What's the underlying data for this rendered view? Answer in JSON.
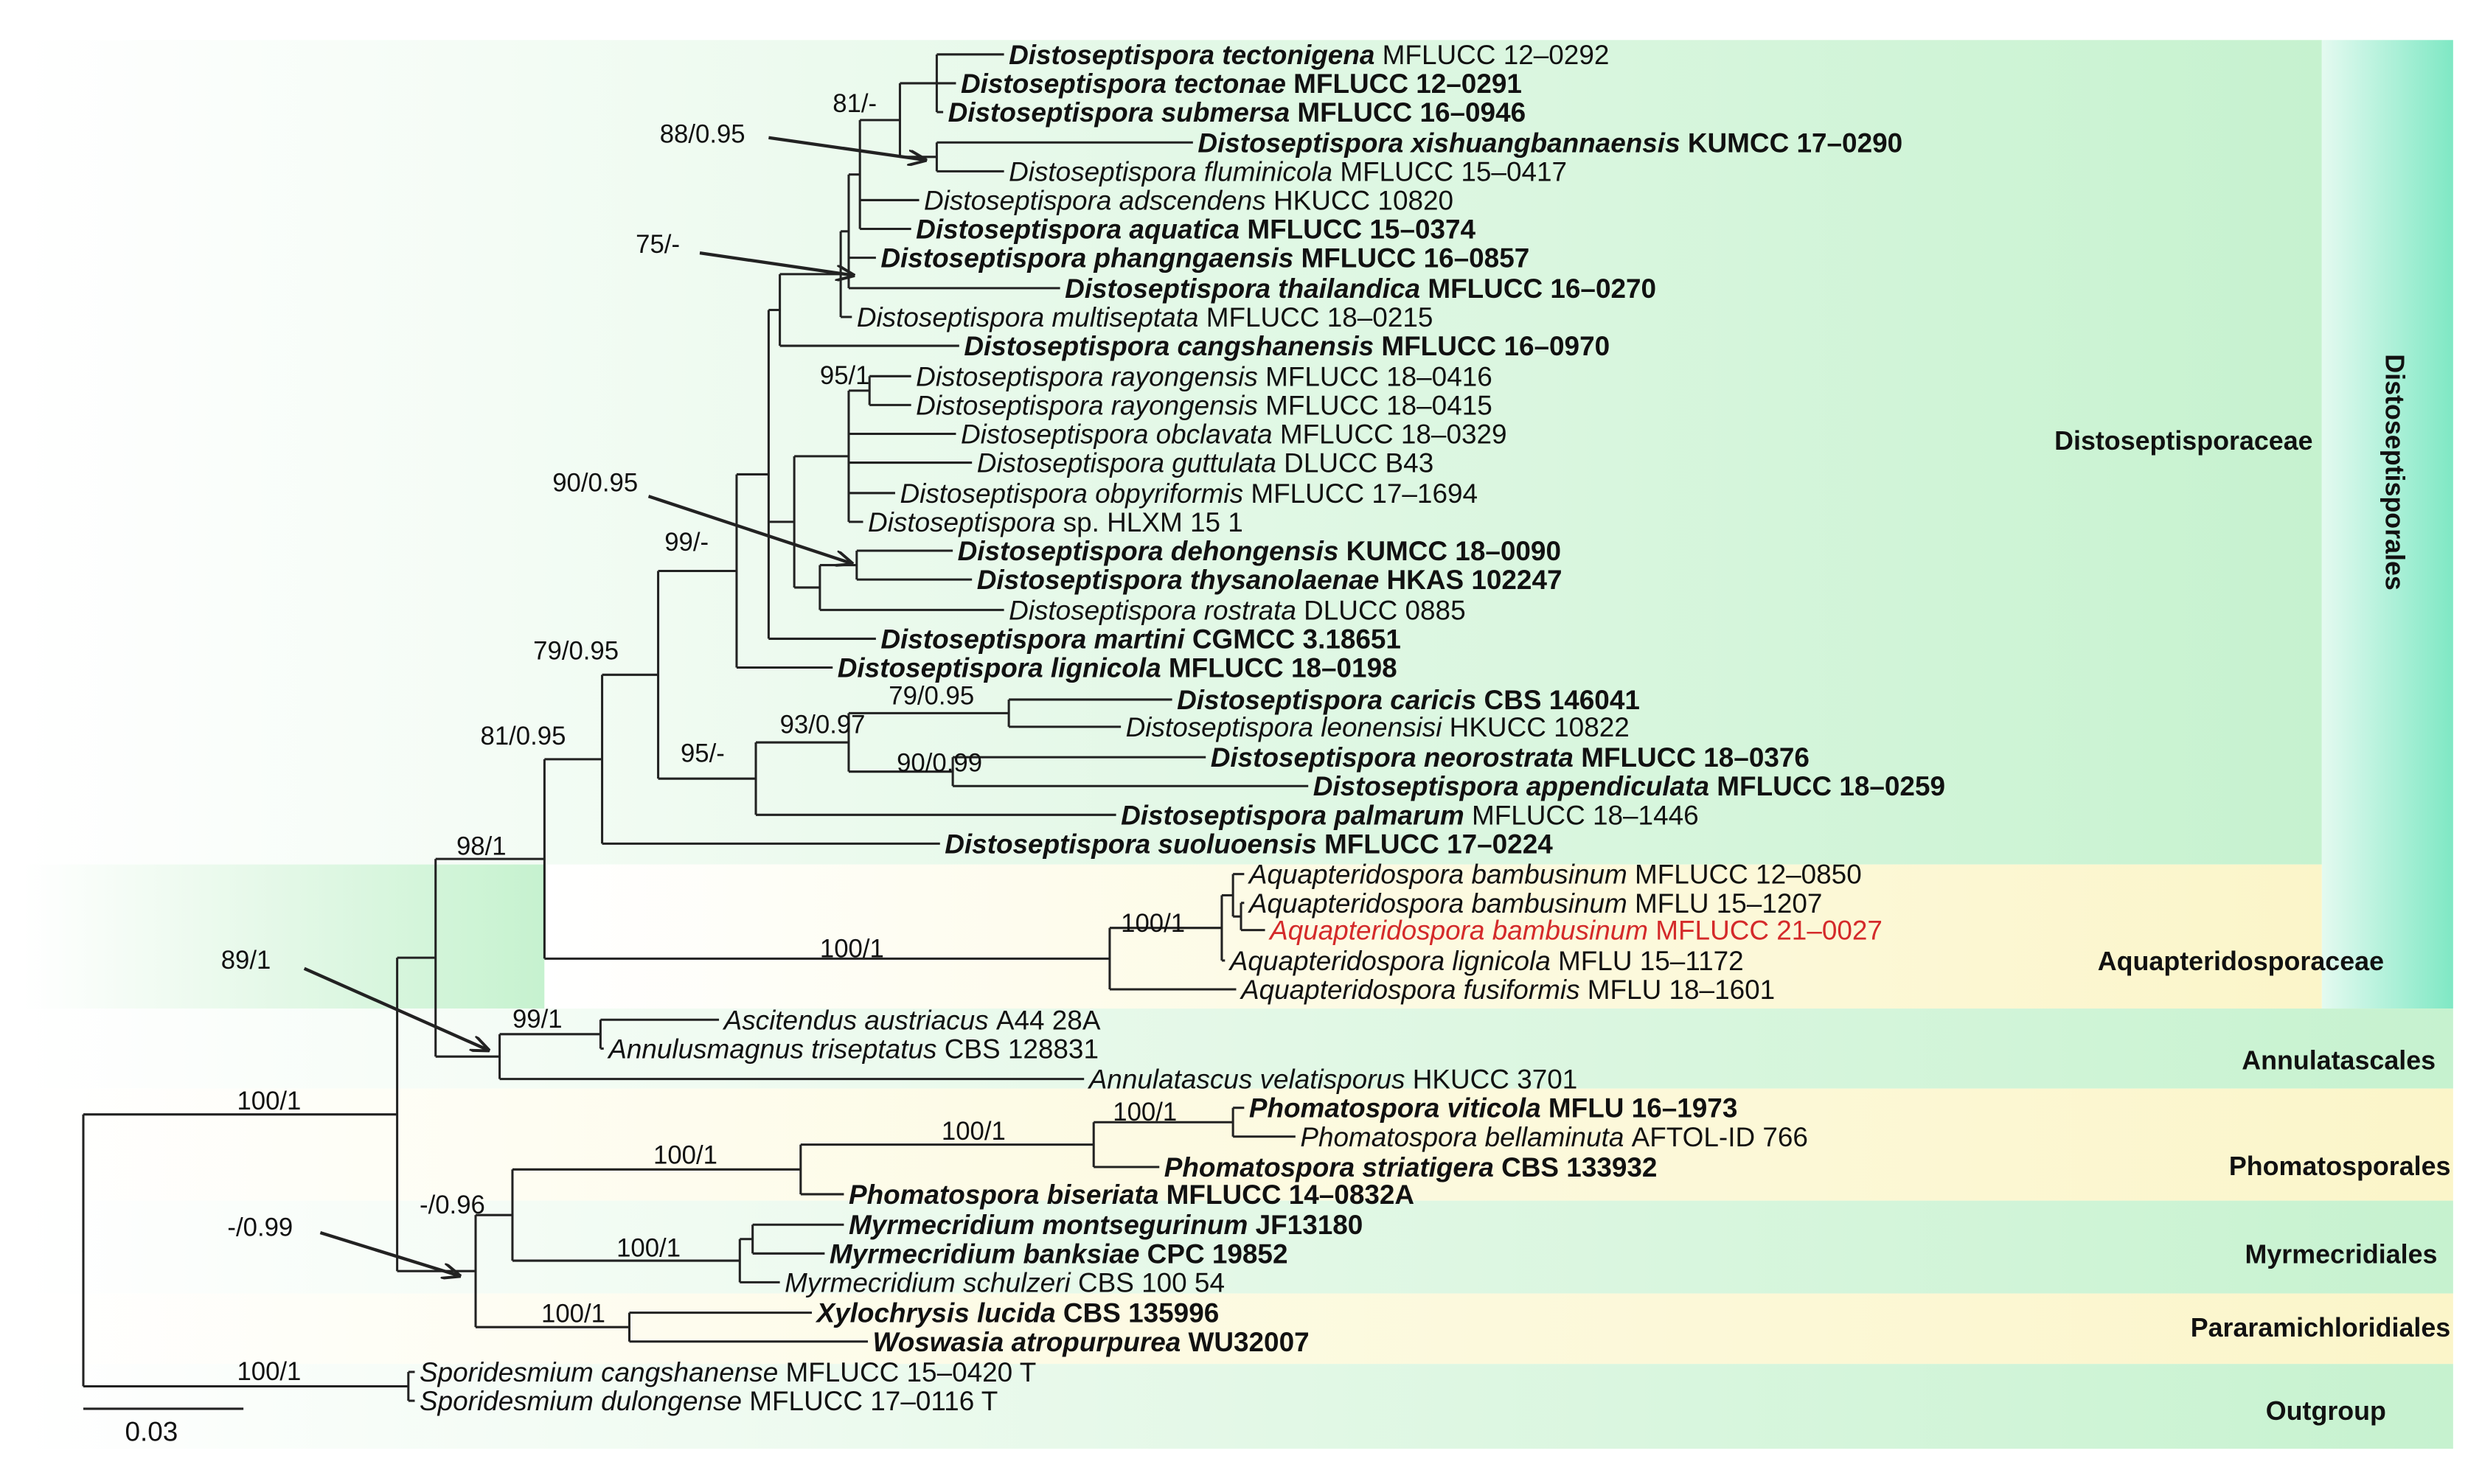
{
  "taxa": [
    {
      "name": "Distoseptispora tectonigena",
      "strain": "MFLUCC 12–0292",
      "bold": "name"
    },
    {
      "name": "Distoseptispora tectonae",
      "strain": "MFLUCC 12–0291",
      "bold": "both"
    },
    {
      "name": "Distoseptispora submersa",
      "strain": "MFLUCC 16–0946",
      "bold": "both"
    },
    {
      "name": "Distoseptispora xishuangbannaensis",
      "strain": "KUMCC 17–0290",
      "bold": "both"
    },
    {
      "name": "Distoseptispora fluminicola",
      "strain": "MFLUCC 15–0417"
    },
    {
      "name": "Distoseptispora adscendens",
      "strain": "HKUCC 10820"
    },
    {
      "name": "Distoseptispora aquatica",
      "strain": "MFLUCC 15–0374",
      "bold": "both"
    },
    {
      "name": "Distoseptispora phangngaensis",
      "strain": "MFLUCC 16–0857",
      "bold": "both"
    },
    {
      "name": "Distoseptispora thailandica",
      "strain": "MFLUCC 16–0270",
      "bold": "both"
    },
    {
      "name": "Distoseptispora multiseptata",
      "strain": "MFLUCC 18–0215"
    },
    {
      "name": "Distoseptispora cangshanensis",
      "strain": "MFLUCC 16–0970",
      "bold": "both"
    },
    {
      "name": "Distoseptispora rayongensis",
      "strain": "MFLUCC 18–0416"
    },
    {
      "name": "Distoseptispora rayongensis",
      "strain": "MFLUCC 18–0415"
    },
    {
      "name": "Distoseptispora obclavata",
      "strain": "MFLUCC 18–0329"
    },
    {
      "name": "Distoseptispora guttulata",
      "strain": "DLUCC B43"
    },
    {
      "name": "Distoseptispora obpyriformis",
      "strain": "MFLUCC 17–1694"
    },
    {
      "name": "Distoseptispora",
      "strain": "sp. HLXM 15 1"
    },
    {
      "name": "Distoseptispora dehongensis",
      "strain": "KUMCC 18–0090",
      "bold": "both"
    },
    {
      "name": "Distoseptispora thysanolaenae",
      "strain": "HKAS 102247",
      "bold": "both"
    },
    {
      "name": "Distoseptispora rostrata",
      "strain": "DLUCC 0885"
    },
    {
      "name": "Distoseptispora martini",
      "strain": "CGMCC 3.18651",
      "bold": "both"
    },
    {
      "name": "Distoseptispora lignicola",
      "strain": "MFLUCC 18–0198",
      "bold": "both"
    },
    {
      "name": "Distoseptispora caricis",
      "strain": "CBS 146041",
      "bold": "both"
    },
    {
      "name": "Distoseptispora leonensisi",
      "strain": "HKUCC 10822"
    },
    {
      "name": "Distoseptispora neorostrata",
      "strain": "MFLUCC 18–0376",
      "bold": "both"
    },
    {
      "name": "Distoseptispora appendiculata",
      "strain": "MFLUCC 18–0259",
      "bold": "both"
    },
    {
      "name": "Distoseptispora palmarum",
      "strain": "MFLUCC 18–1446",
      "bold": "name"
    },
    {
      "name": "Distoseptispora suoluoensis",
      "strain": "MFLUCC 17–0224",
      "bold": "both"
    },
    {
      "name": "Aquapteridospora bambusinum",
      "strain": "MFLUCC 12–0850"
    },
    {
      "name": "Aquapteridospora bambusinum",
      "strain": "MFLU 15–1207"
    },
    {
      "name": "Aquapteridospora bambusinum",
      "strain": "MFLUCC 21–0027",
      "color": "#d42a2a"
    },
    {
      "name": "Aquapteridospora lignicola",
      "strain": "MFLU 15–1172"
    },
    {
      "name": "Aquapteridospora fusiformis",
      "strain": "MFLU 18–1601"
    },
    {
      "name": "Ascitendus austriacus",
      "strain": "A44 28A"
    },
    {
      "name": "Annulusmagnus triseptatus",
      "strain": "CBS 128831"
    },
    {
      "name": "Annulatascus velatisporus",
      "strain": "HKUCC 3701"
    },
    {
      "name": "Phomatospora viticola",
      "strain": "MFLU 16–1973",
      "bold": "both"
    },
    {
      "name": "Phomatospora bellaminuta",
      "strain": "AFTOL-ID 766"
    },
    {
      "name": "Phomatospora striatigera",
      "strain": "CBS 133932",
      "bold": "both"
    },
    {
      "name": "Phomatospora biseriata",
      "strain": "MFLUCC 14–0832A",
      "bold": "both"
    },
    {
      "name": "Myrmecridium montsegurinum",
      "strain": "JF13180",
      "bold": "both"
    },
    {
      "name": "Myrmecridium banksiae",
      "strain": "CPC 19852",
      "bold": "both"
    },
    {
      "name": "Myrmecridium schulzeri",
      "strain": "CBS 100 54"
    },
    {
      "name": "Xylochrysis lucida",
      "strain": "CBS 135996",
      "bold": "both"
    },
    {
      "name": "Woswasia atropurpurea",
      "strain": "WU32007",
      "bold": "both"
    },
    {
      "name": "Sporidesmium cangshanense",
      "strain": "MFLUCC 15–0420 T"
    },
    {
      "name": "Sporidesmium dulongense",
      "strain": "MFLUCC 17–0116 T"
    }
  ],
  "supports": [
    "81/-",
    "88/0.95",
    "75/-",
    "95/1",
    "90/0.95",
    "99/-",
    "79/0.95",
    "81/0.95",
    "79/0.95",
    "93/0.97",
    "95/-",
    "90/0.99",
    "98/1",
    "100/1",
    "100/1",
    "89/1",
    "99/1",
    "100/1",
    "100/1",
    "100/1",
    "100/1",
    "-/0.96",
    "-/0.99",
    "100/1",
    "100/1",
    "100/1"
  ],
  "clades": [
    "Distoseptisporaceae",
    "Aquapteridosporaceae",
    "Annulatascales",
    "Phomatosporales",
    "Myrmecridiales",
    "Pararamichloridiales",
    "Outgroup"
  ],
  "order_label": "Distoseptisporales",
  "scale_bar": "0.03"
}
